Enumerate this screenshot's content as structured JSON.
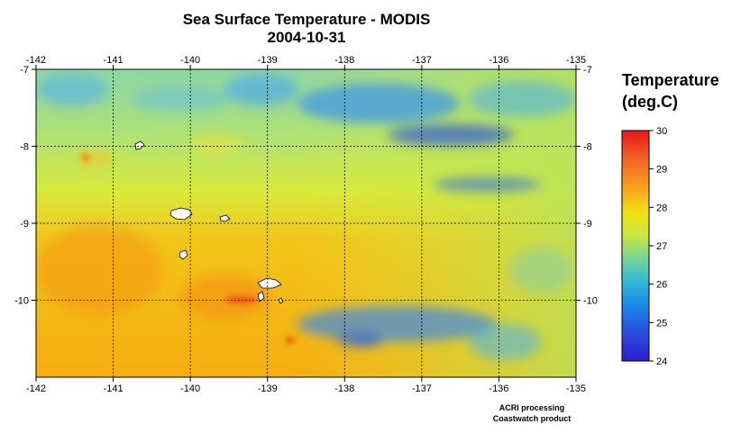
{
  "title": "Sea Surface Temperature - MODIS",
  "date": "2004-10-31",
  "longitude_ticks": [
    "-142",
    "-141",
    "-140",
    "-139",
    "-138",
    "-137",
    "-136",
    "-135"
  ],
  "latitude_ticks": [
    "-7",
    "-8",
    "-9",
    "-10"
  ],
  "lon_range": [
    -142,
    -135
  ],
  "lat_range": [
    -7,
    -11
  ],
  "legend": {
    "title_line1": "Temperature",
    "title_line2": "(deg.C)",
    "ticks": [
      "30",
      "29",
      "28",
      "27",
      "26",
      "25",
      "24"
    ],
    "min": 24,
    "max": 30
  },
  "credits": {
    "line1": "ACRI processing",
    "line2": "Coastwatch product"
  },
  "colors": {
    "frame": "#000000",
    "grid": "#000000",
    "land": "#ffffff",
    "warm": "#f7a800",
    "cool": "#3f8ff0",
    "neutral": "#c8e84a"
  }
}
